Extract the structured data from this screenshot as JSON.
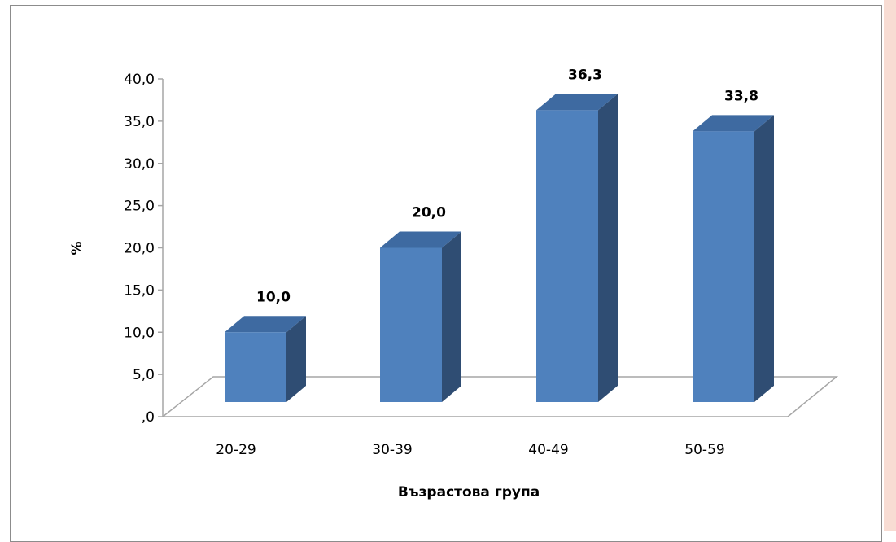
{
  "chart_data": {
    "type": "bar",
    "categories": [
      "20-29",
      "30-39",
      "40-49",
      "50-59"
    ],
    "values": [
      10.0,
      20.0,
      36.3,
      33.8
    ],
    "data_labels": [
      "10,0",
      "20,0",
      "36,3",
      "33,8"
    ],
    "title": "",
    "xlabel": "Възрастова група",
    "ylabel": "%",
    "ylim": [
      0,
      40
    ],
    "ytick_values": [
      0,
      5,
      10,
      15,
      20,
      25,
      30,
      35,
      40
    ],
    "ytick_labels": [
      ",0",
      "5,0",
      "10,0",
      "15,0",
      "20,0",
      "25,0",
      "30,0",
      "35,0",
      "40,0"
    ],
    "grid": false,
    "legend": "none",
    "style": "3d-column",
    "colors": {
      "bar_front": "#4f81bd",
      "bar_side": "#2f4d73",
      "bar_top": "#3e6aa1",
      "floor_line": "#a6a6a6",
      "axis_line": "#a6a6a6"
    }
  }
}
